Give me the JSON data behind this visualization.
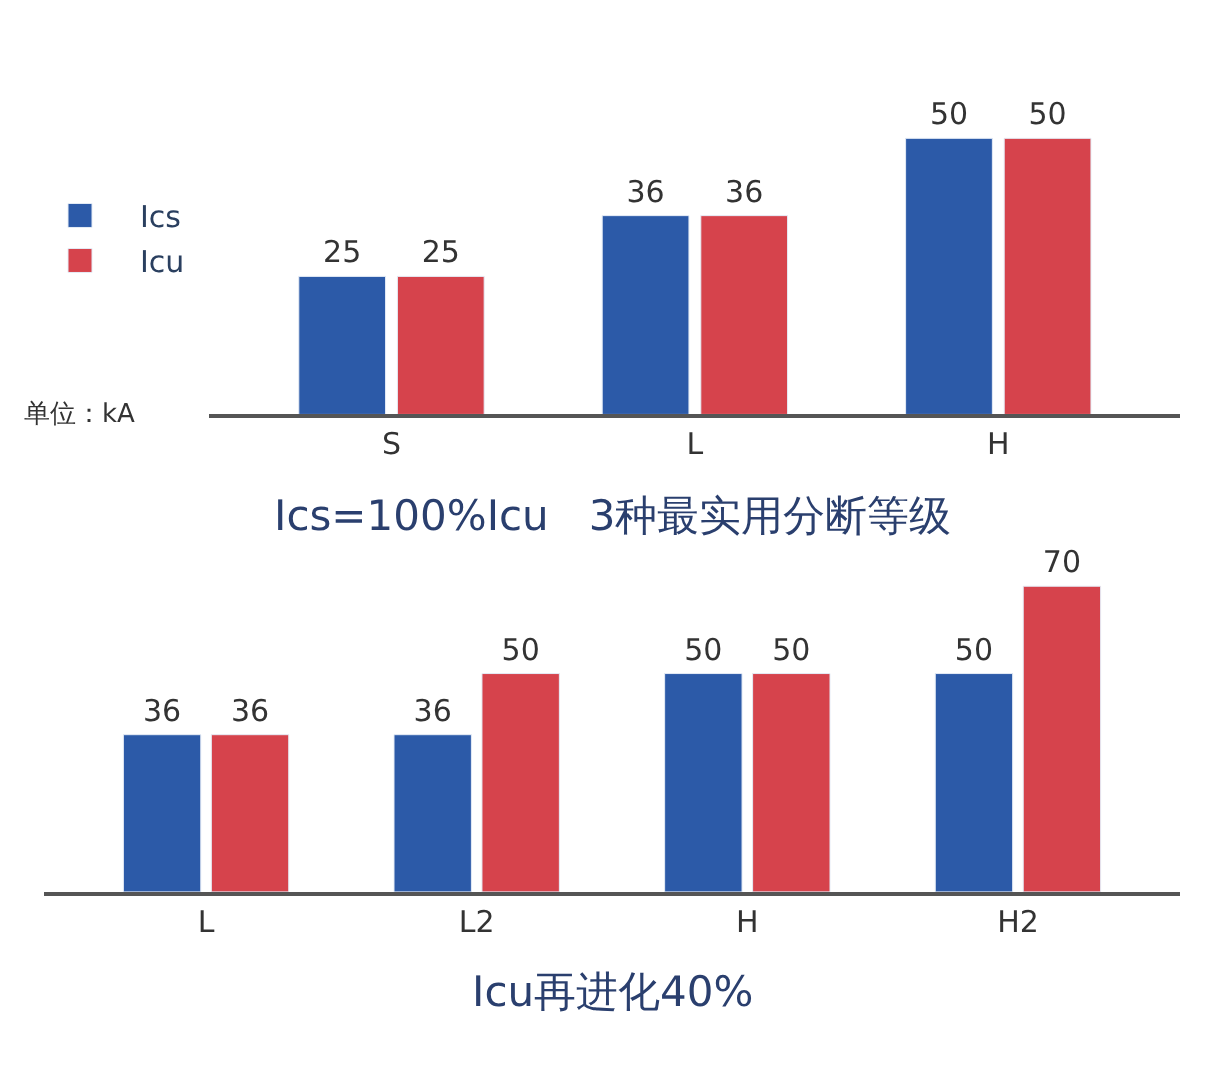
{
  "chart_data": [
    {
      "type": "bar",
      "categories": [
        "S",
        "L",
        "H"
      ],
      "series": [
        {
          "name": "Ics",
          "color": "#2c5aa8",
          "values": [
            25,
            36,
            50
          ]
        },
        {
          "name": "Icu",
          "color": "#d6434c",
          "values": [
            25,
            36,
            50
          ]
        }
      ],
      "data_labels": true,
      "legend": "left",
      "annotations": [
        "单位：kA",
        "Ics=100%Icu   3种最实用分断等级"
      ]
    },
    {
      "type": "bar",
      "categories": [
        "L",
        "L2",
        "H",
        "H2"
      ],
      "series": [
        {
          "color": "#2c5aa8",
          "values": [
            36,
            36,
            50,
            50
          ]
        },
        {
          "color": "#d6434c",
          "values": [
            36,
            50,
            50,
            70
          ]
        }
      ],
      "data_labels": true,
      "legend": false,
      "annotations": [
        "Icu再进化40%"
      ]
    }
  ]
}
